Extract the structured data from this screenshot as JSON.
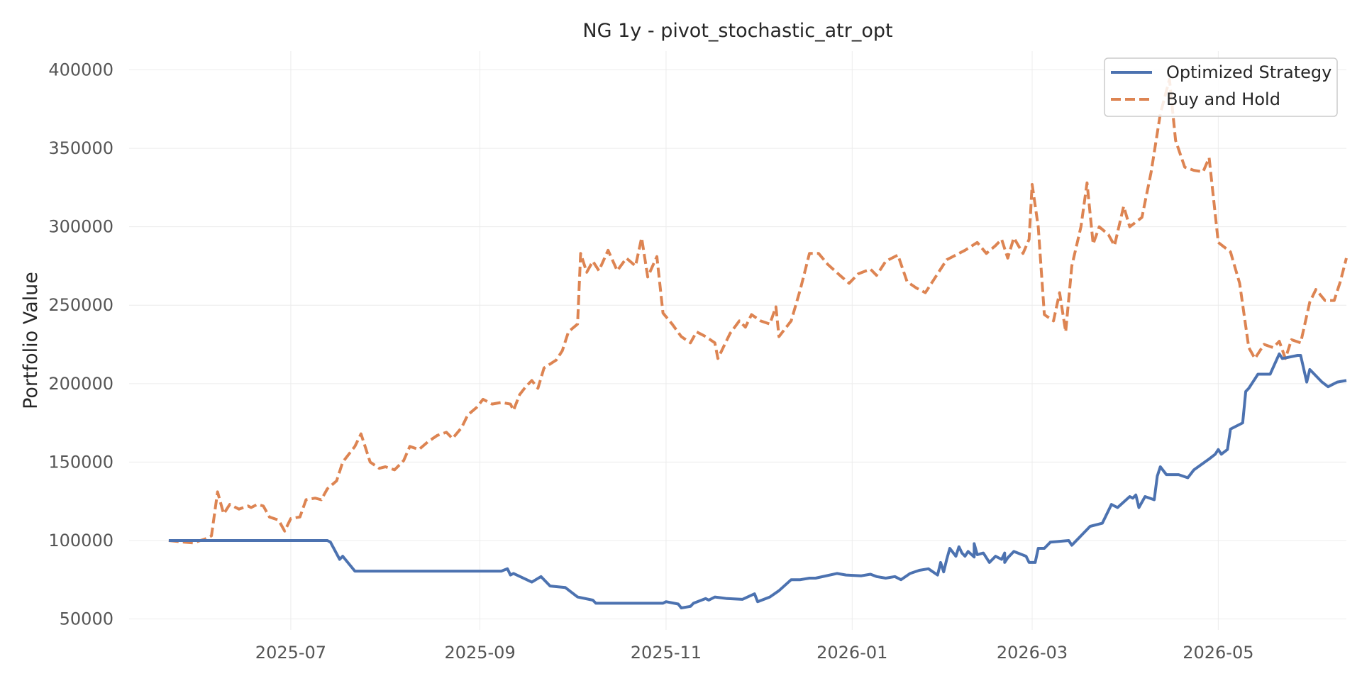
{
  "chart_data": {
    "type": "line",
    "title": "NG 1y - pivot_stochastic_atr_opt",
    "xlabel": "",
    "ylabel": "Portfolio Value",
    "xlim": [
      "2025-05-09",
      "2026-06-12"
    ],
    "ylim": [
      43000,
      412000
    ],
    "x_ticks": [
      "2025-07-01",
      "2025-09-01",
      "2025-11-01",
      "2026-01-01",
      "2026-03-01",
      "2026-05-01"
    ],
    "x_tick_labels": [
      "2025-07",
      "2025-09",
      "2025-11",
      "2026-01",
      "2026-03",
      "2026-05"
    ],
    "y_ticks": [
      50000,
      100000,
      150000,
      200000,
      250000,
      300000,
      350000,
      400000
    ],
    "y_tick_labels": [
      "50000",
      "100000",
      "150000",
      "200000",
      "250000",
      "300000",
      "350000",
      "400000"
    ],
    "grid": true,
    "legend_position": "top-right",
    "series": [
      {
        "name": "Optimized Strategy",
        "color": "#4c72b0",
        "style": "solid",
        "points": [
          [
            "2025-05-22",
            100000
          ],
          [
            "2025-06-15",
            100000
          ],
          [
            "2025-07-13",
            100000
          ],
          [
            "2025-07-14",
            99000
          ],
          [
            "2025-07-17",
            88000
          ],
          [
            "2025-07-18",
            90000
          ],
          [
            "2025-07-22",
            80500
          ],
          [
            "2025-08-15",
            80500
          ],
          [
            "2025-09-08",
            80500
          ],
          [
            "2025-09-10",
            82000
          ],
          [
            "2025-09-11",
            78000
          ],
          [
            "2025-09-12",
            79000
          ],
          [
            "2025-09-18",
            73500
          ],
          [
            "2025-09-21",
            77000
          ],
          [
            "2025-09-24",
            71000
          ],
          [
            "2025-09-29",
            70000
          ],
          [
            "2025-10-03",
            64000
          ],
          [
            "2025-10-08",
            62000
          ],
          [
            "2025-10-09",
            60000
          ],
          [
            "2025-10-31",
            60000
          ],
          [
            "2025-11-01",
            61000
          ],
          [
            "2025-11-05",
            59500
          ],
          [
            "2025-11-06",
            57000
          ],
          [
            "2025-11-09",
            58000
          ],
          [
            "2025-11-10",
            60000
          ],
          [
            "2025-11-14",
            63000
          ],
          [
            "2025-11-15",
            62000
          ],
          [
            "2025-11-17",
            64000
          ],
          [
            "2025-11-21",
            63000
          ],
          [
            "2025-11-26",
            62500
          ],
          [
            "2025-11-30",
            66000
          ],
          [
            "2025-12-01",
            61000
          ],
          [
            "2025-12-05",
            64000
          ],
          [
            "2025-12-08",
            68000
          ],
          [
            "2025-12-12",
            75000
          ],
          [
            "2025-12-15",
            75000
          ],
          [
            "2025-12-18",
            76000
          ],
          [
            "2025-12-20",
            76000
          ],
          [
            "2025-12-27",
            79000
          ],
          [
            "2025-12-30",
            78000
          ],
          [
            "2026-01-04",
            77500
          ],
          [
            "2026-01-07",
            78500
          ],
          [
            "2026-01-09",
            77000
          ],
          [
            "2026-01-12",
            76000
          ],
          [
            "2026-01-15",
            77000
          ],
          [
            "2026-01-17",
            75000
          ],
          [
            "2026-01-20",
            79000
          ],
          [
            "2026-01-23",
            81000
          ],
          [
            "2026-01-26",
            82000
          ],
          [
            "2026-01-30",
            86000
          ],
          [
            "2026-02-01",
            88000
          ],
          [
            "2026-02-04",
            90000
          ],
          [
            "2026-02-07",
            90000
          ],
          [
            "2026-02-10",
            89500
          ],
          [
            "2026-02-13",
            92000
          ],
          [
            "2026-02-17",
            90000
          ],
          [
            "2026-02-19",
            88000
          ],
          [
            "2026-02-20",
            92000
          ],
          [
            "2026-02-21",
            89000
          ],
          [
            "2026-02-23",
            93000
          ],
          [
            "2026-02-27",
            90000
          ],
          [
            "2026-01-29",
            78000
          ],
          [
            "2026-01-31",
            80000
          ],
          [
            "2026-02-02",
            95000
          ],
          [
            "2026-02-05",
            96000
          ],
          [
            "2026-02-06",
            92000
          ],
          [
            "2026-02-08",
            93000
          ],
          [
            "2026-02-10",
            98000
          ],
          [
            "2026-02-11",
            91000
          ],
          [
            "2026-02-15",
            86000
          ],
          [
            "2026-02-20",
            86000
          ],
          [
            "2026-02-28",
            86000
          ],
          [
            "2026-03-01",
            86000
          ],
          [
            "2026-03-02",
            86000
          ],
          [
            "2026-03-03",
            95000
          ],
          [
            "2026-03-05",
            95000
          ],
          [
            "2026-03-07",
            99000
          ],
          [
            "2026-03-13",
            100000
          ],
          [
            "2026-03-14",
            97000
          ],
          [
            "2026-03-18",
            105000
          ],
          [
            "2026-03-20",
            109000
          ],
          [
            "2026-03-24",
            111000
          ],
          [
            "2026-03-27",
            123000
          ],
          [
            "2026-03-29",
            121000
          ],
          [
            "2026-04-02",
            128000
          ],
          [
            "2026-04-03",
            127000
          ],
          [
            "2026-04-04",
            129000
          ],
          [
            "2026-04-05",
            121000
          ],
          [
            "2026-04-07",
            128000
          ],
          [
            "2026-04-10",
            126000
          ],
          [
            "2026-04-11",
            141000
          ],
          [
            "2026-04-12",
            147000
          ],
          [
            "2026-04-14",
            142000
          ],
          [
            "2026-04-18",
            142000
          ],
          [
            "2026-04-21",
            140000
          ],
          [
            "2026-04-23",
            145000
          ],
          [
            "2026-04-28",
            152000
          ],
          [
            "2026-04-30",
            155000
          ],
          [
            "2026-05-01",
            158000
          ],
          [
            "2026-05-02",
            155000
          ],
          [
            "2026-05-04",
            158000
          ],
          [
            "2026-05-05",
            171000
          ],
          [
            "2026-05-09",
            175000
          ],
          [
            "2026-05-10",
            195000
          ],
          [
            "2026-05-11",
            197000
          ],
          [
            "2026-05-13",
            203000
          ],
          [
            "2026-05-14",
            206000
          ],
          [
            "2026-05-18",
            206000
          ],
          [
            "2026-05-21",
            219000
          ],
          [
            "2026-05-22",
            216000
          ],
          [
            "2026-05-27",
            218000
          ],
          [
            "2026-05-28",
            218000
          ],
          [
            "2026-05-30",
            201000
          ],
          [
            "2026-05-31",
            209000
          ],
          [
            "2026-06-04",
            201000
          ],
          [
            "2026-06-06",
            198000
          ],
          [
            "2026-06-09",
            201000
          ],
          [
            "2026-06-12",
            202000
          ]
        ]
      },
      {
        "name": "Buy and Hold",
        "color": "#dd8452",
        "style": "dashed",
        "points": [
          [
            "2025-05-22",
            100000
          ],
          [
            "2025-05-27",
            99000
          ],
          [
            "2025-05-30",
            98500
          ],
          [
            "2025-06-03",
            101000
          ],
          [
            "2025-06-05",
            103000
          ],
          [
            "2025-06-07",
            131000
          ],
          [
            "2025-06-09",
            117000
          ],
          [
            "2025-06-11",
            123000
          ],
          [
            "2025-06-14",
            120000
          ],
          [
            "2025-06-17",
            122000
          ],
          [
            "2025-06-18",
            121000
          ],
          [
            "2025-06-20",
            123000
          ],
          [
            "2025-06-22",
            122000
          ],
          [
            "2025-06-24",
            115000
          ],
          [
            "2025-06-27",
            113000
          ],
          [
            "2025-06-29",
            106000
          ],
          [
            "2025-07-01",
            114000
          ],
          [
            "2025-07-04",
            115000
          ],
          [
            "2025-07-06",
            126000
          ],
          [
            "2025-07-09",
            127000
          ],
          [
            "2025-07-11",
            126000
          ],
          [
            "2025-07-13",
            133000
          ],
          [
            "2025-07-16",
            138000
          ],
          [
            "2025-07-18",
            150000
          ],
          [
            "2025-07-22",
            160000
          ],
          [
            "2025-07-24",
            168000
          ],
          [
            "2025-07-27",
            150000
          ],
          [
            "2025-07-30",
            146000
          ],
          [
            "2025-08-01",
            147000
          ],
          [
            "2025-08-04",
            145000
          ],
          [
            "2025-08-07",
            151000
          ],
          [
            "2025-08-09",
            160000
          ],
          [
            "2025-08-12",
            158000
          ],
          [
            "2025-08-15",
            163000
          ],
          [
            "2025-08-18",
            167000
          ],
          [
            "2025-08-21",
            169000
          ],
          [
            "2025-08-23",
            165000
          ],
          [
            "2025-08-26",
            172000
          ],
          [
            "2025-08-28",
            180000
          ],
          [
            "2025-08-31",
            185000
          ],
          [
            "2025-09-02",
            190000
          ],
          [
            "2025-09-05",
            187000
          ],
          [
            "2025-09-08",
            188000
          ],
          [
            "2025-09-11",
            187000
          ],
          [
            "2025-09-12",
            183000
          ],
          [
            "2025-09-14",
            193000
          ],
          [
            "2025-09-16",
            198000
          ],
          [
            "2025-09-18",
            202000
          ],
          [
            "2025-09-20",
            197000
          ],
          [
            "2025-09-22",
            210000
          ],
          [
            "2025-09-26",
            215000
          ],
          [
            "2025-09-28",
            221000
          ],
          [
            "2025-09-30",
            233000
          ],
          [
            "2025-10-03",
            238000
          ],
          [
            "2025-10-04",
            283000
          ],
          [
            "2025-10-06",
            271000
          ],
          [
            "2025-10-08",
            278000
          ],
          [
            "2025-10-10",
            272000
          ],
          [
            "2025-10-13",
            285000
          ],
          [
            "2025-10-16",
            272000
          ],
          [
            "2025-10-19",
            280000
          ],
          [
            "2025-10-22",
            275000
          ],
          [
            "2025-10-24",
            293000
          ],
          [
            "2025-10-26",
            268000
          ],
          [
            "2025-10-29",
            281000
          ],
          [
            "2025-10-31",
            245000
          ],
          [
            "2025-11-03",
            238000
          ],
          [
            "2025-11-06",
            230000
          ],
          [
            "2025-11-09",
            226000
          ],
          [
            "2025-11-11",
            233000
          ],
          [
            "2025-11-14",
            230000
          ],
          [
            "2025-11-17",
            226000
          ],
          [
            "2025-11-18",
            216000
          ],
          [
            "2025-11-22",
            232000
          ],
          [
            "2025-11-25",
            240000
          ],
          [
            "2025-11-27",
            236000
          ],
          [
            "2025-11-29",
            244000
          ],
          [
            "2025-12-02",
            240000
          ],
          [
            "2025-12-05",
            238000
          ],
          [
            "2025-12-07",
            249000
          ],
          [
            "2025-12-08",
            230000
          ],
          [
            "2025-12-12",
            240000
          ],
          [
            "2025-12-15",
            260000
          ],
          [
            "2025-12-18",
            283000
          ],
          [
            "2025-12-21",
            283000
          ],
          [
            "2025-12-24",
            276000
          ],
          [
            "2025-12-28",
            269000
          ],
          [
            "2025-12-31",
            264000
          ],
          [
            "2026-01-03",
            270000
          ],
          [
            "2026-01-07",
            273000
          ],
          [
            "2026-01-09",
            269000
          ],
          [
            "2026-01-12",
            278000
          ],
          [
            "2026-01-16",
            282000
          ],
          [
            "2026-01-19",
            265000
          ],
          [
            "2026-01-22",
            261000
          ],
          [
            "2026-01-25",
            258000
          ],
          [
            "2026-01-29",
            270000
          ],
          [
            "2026-02-01",
            279000
          ],
          [
            "2026-02-04",
            282000
          ],
          [
            "2026-02-07",
            285000
          ],
          [
            "2026-02-11",
            290000
          ],
          [
            "2026-02-14",
            283000
          ],
          [
            "2026-02-17",
            288000
          ],
          [
            "2026-02-19",
            292000
          ],
          [
            "2026-02-21",
            280000
          ],
          [
            "2026-02-23",
            293000
          ],
          [
            "2026-02-26",
            283000
          ],
          [
            "2026-02-28",
            292000
          ],
          [
            "2026-03-01",
            327000
          ],
          [
            "2026-03-03",
            300000
          ],
          [
            "2026-03-05",
            244000
          ],
          [
            "2026-03-08",
            240000
          ],
          [
            "2026-03-10",
            258000
          ],
          [
            "2026-03-12",
            233000
          ],
          [
            "2026-03-14",
            275000
          ],
          [
            "2026-03-17",
            300000
          ],
          [
            "2026-03-19",
            328000
          ],
          [
            "2026-03-21",
            289000
          ],
          [
            "2026-03-23",
            300000
          ],
          [
            "2026-03-26",
            295000
          ],
          [
            "2026-03-28",
            288000
          ],
          [
            "2026-03-31",
            313000
          ],
          [
            "2026-04-02",
            300000
          ],
          [
            "2026-04-06",
            306000
          ],
          [
            "2026-04-09",
            335000
          ],
          [
            "2026-04-12",
            372000
          ],
          [
            "2026-04-15",
            394000
          ],
          [
            "2026-04-17",
            355000
          ],
          [
            "2026-04-20",
            338000
          ],
          [
            "2026-04-23",
            336000
          ],
          [
            "2026-04-26",
            335000
          ],
          [
            "2026-04-28",
            344000
          ],
          [
            "2026-05-01",
            290000
          ],
          [
            "2026-05-05",
            284000
          ],
          [
            "2026-05-08",
            264000
          ],
          [
            "2026-05-11",
            223000
          ],
          [
            "2026-05-13",
            216000
          ],
          [
            "2026-05-16",
            225000
          ],
          [
            "2026-05-19",
            223000
          ],
          [
            "2026-05-21",
            227000
          ],
          [
            "2026-05-23",
            216000
          ],
          [
            "2026-05-25",
            228000
          ],
          [
            "2026-05-28",
            226000
          ],
          [
            "2026-05-31",
            252000
          ],
          [
            "2026-06-02",
            260000
          ],
          [
            "2026-06-05",
            253000
          ],
          [
            "2026-06-08",
            253000
          ],
          [
            "2026-06-10",
            265000
          ],
          [
            "2026-06-12",
            280000
          ]
        ]
      }
    ]
  }
}
